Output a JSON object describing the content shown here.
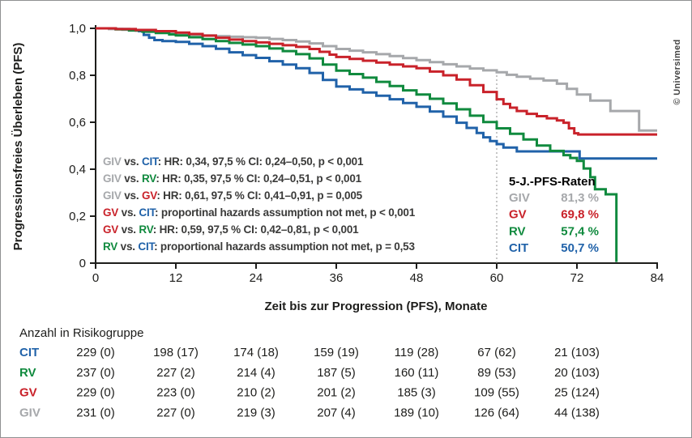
{
  "copyright": "© Universimed",
  "colors": {
    "GIV": "#a6a8ab",
    "GV": "#c9222a",
    "RV": "#108a3e",
    "CIT": "#2062a9",
    "text": "#3a3a39",
    "axis": "#1d1d1b",
    "refline": "#a0a0a0"
  },
  "chart_data": {
    "type": "line",
    "subtype": "kaplan-meier-step",
    "title": "",
    "xlabel": "Zeit bis zur Progression (PFS), Monate",
    "ylabel": "Progressionsfreies Überleben (PFS)",
    "xlim": [
      0,
      84
    ],
    "ylim": [
      0,
      1.0
    ],
    "xticks": [
      0,
      12,
      24,
      36,
      48,
      60,
      72,
      84
    ],
    "yticks": [
      {
        "label": "1,0",
        "value": 1.0
      },
      {
        "label": "0,8",
        "value": 0.8
      },
      {
        "label": "0,6",
        "value": 0.6
      },
      {
        "label": "0,4",
        "value": 0.4
      },
      {
        "label": "0,2",
        "value": 0.2
      },
      {
        "label": "0",
        "value": 0.0
      }
    ],
    "reference_line_x": 60,
    "grid": false,
    "series": [
      {
        "name": "GIV",
        "color_key": "GIV",
        "steps": [
          [
            0,
            1.0
          ],
          [
            2,
            0.997
          ],
          [
            4,
            0.994
          ],
          [
            6,
            0.99
          ],
          [
            8,
            0.986
          ],
          [
            10,
            0.981
          ],
          [
            12,
            0.977
          ],
          [
            14,
            0.973
          ],
          [
            16,
            0.97
          ],
          [
            18,
            0.967
          ],
          [
            20,
            0.964
          ],
          [
            22,
            0.962
          ],
          [
            24,
            0.96
          ],
          [
            26,
            0.955
          ],
          [
            28,
            0.95
          ],
          [
            30,
            0.944
          ],
          [
            32,
            0.936
          ],
          [
            34,
            0.924
          ],
          [
            36,
            0.912
          ],
          [
            38,
            0.905
          ],
          [
            40,
            0.898
          ],
          [
            42,
            0.89
          ],
          [
            44,
            0.882
          ],
          [
            46,
            0.873
          ],
          [
            48,
            0.865
          ],
          [
            50,
            0.856
          ],
          [
            52,
            0.847
          ],
          [
            54,
            0.838
          ],
          [
            56,
            0.829
          ],
          [
            58,
            0.821
          ],
          [
            60,
            0.813
          ],
          [
            61.5,
            0.802
          ],
          [
            63,
            0.794
          ],
          [
            65,
            0.786
          ],
          [
            67,
            0.778
          ],
          [
            69,
            0.764
          ],
          [
            70.5,
            0.742
          ],
          [
            72,
            0.718
          ],
          [
            74,
            0.692
          ],
          [
            77,
            0.648
          ],
          [
            81.3,
            0.565
          ],
          [
            84,
            0.565
          ]
        ]
      },
      {
        "name": "CIT",
        "color_key": "CIT",
        "steps": [
          [
            0,
            1.0
          ],
          [
            3,
            0.997
          ],
          [
            5,
            0.993
          ],
          [
            6.5,
            0.988
          ],
          [
            7.2,
            0.972
          ],
          [
            8,
            0.96
          ],
          [
            8.8,
            0.95
          ],
          [
            10,
            0.946
          ],
          [
            12,
            0.942
          ],
          [
            14,
            0.934
          ],
          [
            16,
            0.924
          ],
          [
            18,
            0.913
          ],
          [
            20,
            0.898
          ],
          [
            22,
            0.886
          ],
          [
            24,
            0.874
          ],
          [
            26,
            0.86
          ],
          [
            28,
            0.846
          ],
          [
            30,
            0.83
          ],
          [
            32,
            0.81
          ],
          [
            34,
            0.78
          ],
          [
            36,
            0.752
          ],
          [
            38,
            0.74
          ],
          [
            40,
            0.727
          ],
          [
            42,
            0.713
          ],
          [
            44,
            0.698
          ],
          [
            46,
            0.682
          ],
          [
            48,
            0.666
          ],
          [
            50,
            0.646
          ],
          [
            52,
            0.624
          ],
          [
            54,
            0.598
          ],
          [
            55.5,
            0.576
          ],
          [
            57,
            0.554
          ],
          [
            58,
            0.536
          ],
          [
            59,
            0.52
          ],
          [
            60,
            0.507
          ],
          [
            61,
            0.492
          ],
          [
            63,
            0.476
          ],
          [
            72.4,
            0.446
          ],
          [
            84,
            0.446
          ]
        ]
      },
      {
        "name": "RV",
        "color_key": "RV",
        "steps": [
          [
            0,
            1.0
          ],
          [
            3,
            0.996
          ],
          [
            5,
            0.991
          ],
          [
            7,
            0.986
          ],
          [
            9,
            0.98
          ],
          [
            11,
            0.974
          ],
          [
            12,
            0.97
          ],
          [
            14,
            0.962
          ],
          [
            16,
            0.954
          ],
          [
            18,
            0.946
          ],
          [
            20,
            0.938
          ],
          [
            22,
            0.931
          ],
          [
            24,
            0.924
          ],
          [
            26,
            0.914
          ],
          [
            28,
            0.903
          ],
          [
            30,
            0.89
          ],
          [
            32,
            0.872
          ],
          [
            34,
            0.846
          ],
          [
            36,
            0.82
          ],
          [
            38,
            0.805
          ],
          [
            40,
            0.79
          ],
          [
            42,
            0.772
          ],
          [
            44,
            0.754
          ],
          [
            46,
            0.736
          ],
          [
            48,
            0.718
          ],
          [
            50,
            0.7
          ],
          [
            52,
            0.68
          ],
          [
            54,
            0.655
          ],
          [
            56,
            0.628
          ],
          [
            58,
            0.601
          ],
          [
            60,
            0.574
          ],
          [
            62,
            0.551
          ],
          [
            64,
            0.527
          ],
          [
            66,
            0.501
          ],
          [
            68,
            0.478
          ],
          [
            70,
            0.46
          ],
          [
            71,
            0.448
          ],
          [
            72,
            0.435
          ],
          [
            73,
            0.403
          ],
          [
            74,
            0.366
          ],
          [
            74.7,
            0.315
          ],
          [
            76.3,
            0.293
          ],
          [
            77.9,
            0.005
          ]
        ]
      },
      {
        "name": "GV",
        "color_key": "GV",
        "steps": [
          [
            0,
            1.0
          ],
          [
            3,
            0.997
          ],
          [
            6,
            0.993
          ],
          [
            9,
            0.988
          ],
          [
            12,
            0.982
          ],
          [
            14,
            0.976
          ],
          [
            16,
            0.969
          ],
          [
            18,
            0.96
          ],
          [
            20,
            0.952
          ],
          [
            22,
            0.946
          ],
          [
            24,
            0.94
          ],
          [
            26,
            0.934
          ],
          [
            28,
            0.928
          ],
          [
            30,
            0.921
          ],
          [
            32,
            0.912
          ],
          [
            33.5,
            0.9
          ],
          [
            35,
            0.888
          ],
          [
            36,
            0.878
          ],
          [
            38,
            0.87
          ],
          [
            40,
            0.862
          ],
          [
            42,
            0.854
          ],
          [
            44,
            0.846
          ],
          [
            46,
            0.838
          ],
          [
            48,
            0.83
          ],
          [
            50,
            0.816
          ],
          [
            52,
            0.8
          ],
          [
            54,
            0.782
          ],
          [
            56,
            0.758
          ],
          [
            58,
            0.729
          ],
          [
            60,
            0.698
          ],
          [
            61,
            0.678
          ],
          [
            62,
            0.662
          ],
          [
            63,
            0.648
          ],
          [
            64.5,
            0.636
          ],
          [
            66,
            0.626
          ],
          [
            67.5,
            0.617
          ],
          [
            69,
            0.608
          ],
          [
            70,
            0.598
          ],
          [
            70.8,
            0.574
          ],
          [
            71.6,
            0.553
          ],
          [
            72.2,
            0.548
          ],
          [
            84,
            0.548
          ]
        ]
      }
    ],
    "stats_lines": [
      {
        "parts": [
          {
            "text": "GIV",
            "color": "GIV"
          },
          {
            "text": " vs. ",
            "color": "text"
          },
          {
            "text": "CIT",
            "color": "CIT"
          },
          {
            "text": ": HR: 0,34, 97,5 % CI: 0,24–0,50, p < 0,001",
            "color": "text"
          }
        ]
      },
      {
        "parts": [
          {
            "text": "GIV",
            "color": "GIV"
          },
          {
            "text": " vs. ",
            "color": "text"
          },
          {
            "text": "RV",
            "color": "RV"
          },
          {
            "text": ": HR: 0,35, 97,5 % CI: 0,24–0,51, p < 0,001",
            "color": "text"
          }
        ]
      },
      {
        "parts": [
          {
            "text": "GIV",
            "color": "GIV"
          },
          {
            "text": " vs. ",
            "color": "text"
          },
          {
            "text": "GV",
            "color": "GV"
          },
          {
            "text": ": HR: 0,61, 97,5 % CI: 0,41–0,91, p = 0,005",
            "color": "text"
          }
        ]
      },
      {
        "parts": [
          {
            "text": "GV",
            "color": "GV"
          },
          {
            "text": " vs. ",
            "color": "text"
          },
          {
            "text": "CIT",
            "color": "CIT"
          },
          {
            "text": ": proportinal hazards assumption not met, p < 0,001",
            "color": "text"
          }
        ]
      },
      {
        "parts": [
          {
            "text": "GV",
            "color": "GV"
          },
          {
            "text": " vs. ",
            "color": "text"
          },
          {
            "text": "RV",
            "color": "RV"
          },
          {
            "text": ": HR: 0,59, 97,5 % CI: 0,42–0,81, p < 0,001",
            "color": "text"
          }
        ]
      },
      {
        "parts": [
          {
            "text": "RV",
            "color": "RV"
          },
          {
            "text": " vs. ",
            "color": "text"
          },
          {
            "text": "CIT",
            "color": "CIT"
          },
          {
            "text": ": proportional hazards assumption not met, p = 0,53",
            "color": "text"
          }
        ]
      }
    ],
    "rates_legend": {
      "title": "5-J.-PFS-Raten",
      "rows": [
        {
          "group": "GIV",
          "value": "81,3 %"
        },
        {
          "group": "GV",
          "value": "69,8 %"
        },
        {
          "group": "RV",
          "value": "57,4 %"
        },
        {
          "group": "CIT",
          "value": "50,7 %"
        }
      ]
    }
  },
  "risk_table": {
    "title": "Anzahl in Risikogruppe",
    "columns_months": [
      0,
      12,
      24,
      36,
      48,
      60,
      72
    ],
    "rows": [
      {
        "group": "CIT",
        "values": [
          "229 (0)",
          "198 (17)",
          "174 (18)",
          "159 (19)",
          "119 (28)",
          "67 (62)",
          "21 (103)"
        ]
      },
      {
        "group": "RV",
        "values": [
          "237 (0)",
          "227 (2)",
          "214 (4)",
          "187 (5)",
          "160 (11)",
          "89 (53)",
          "20 (103)"
        ]
      },
      {
        "group": "GV",
        "values": [
          "229 (0)",
          "223 (0)",
          "210 (2)",
          "201 (2)",
          "185 (3)",
          "109 (55)",
          "25 (124)"
        ]
      },
      {
        "group": "GIV",
        "values": [
          "231 (0)",
          "227 (0)",
          "219 (3)",
          "207 (4)",
          "189 (10)",
          "126 (64)",
          "44 (138)"
        ]
      }
    ]
  }
}
